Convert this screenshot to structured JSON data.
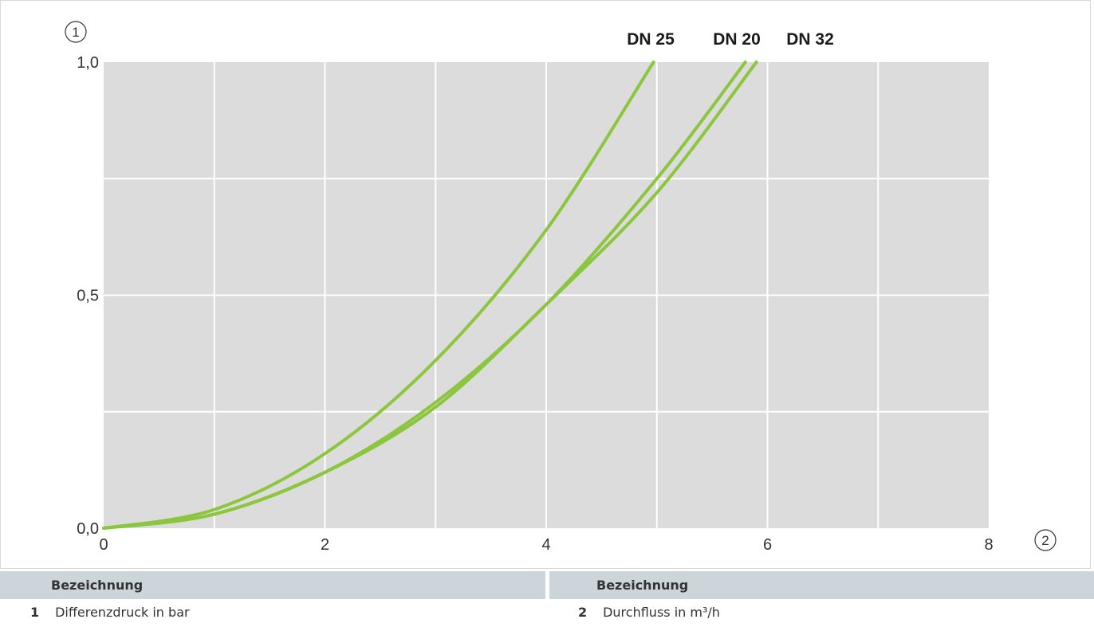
{
  "chart_data": {
    "type": "line",
    "xlim": [
      0,
      8
    ],
    "ylim": [
      0,
      1
    ],
    "x_ticks": [
      "0",
      "2",
      "4",
      "6",
      "8"
    ],
    "y_ticks": [
      "0,0",
      "0,5",
      "1,0"
    ],
    "x_tick_values": [
      0,
      2,
      4,
      6,
      8
    ],
    "y_tick_values": [
      0,
      0.5,
      1
    ],
    "grid": true,
    "x_axis_marker": "2",
    "y_axis_marker": "1",
    "series": [
      {
        "name": "DN 25",
        "x": [
          0,
          1,
          2,
          3,
          4,
          4.97
        ],
        "y": [
          0,
          0.04,
          0.16,
          0.36,
          0.64,
          1.0
        ]
      },
      {
        "name": "DN 20",
        "x": [
          0,
          1,
          2,
          3,
          4,
          5,
          5.8
        ],
        "y": [
          0,
          0.03,
          0.12,
          0.27,
          0.48,
          0.75,
          1.0
        ]
      },
      {
        "name": "DN 32",
        "x": [
          0,
          1,
          2,
          3,
          4,
          5,
          5.9
        ],
        "y": [
          0,
          0.03,
          0.12,
          0.26,
          0.48,
          0.72,
          1.0
        ]
      }
    ],
    "colors": {
      "plot_background": "#dcdcdc",
      "grid": "#ffffff",
      "curve": "#8cc63f"
    }
  },
  "legend": {
    "left": {
      "header": "Bezeichnung",
      "number": "1",
      "text": "Differenzdruck in bar"
    },
    "right": {
      "header": "Bezeichnung",
      "number": "2",
      "text": "Durchfluss in m³/h"
    }
  }
}
